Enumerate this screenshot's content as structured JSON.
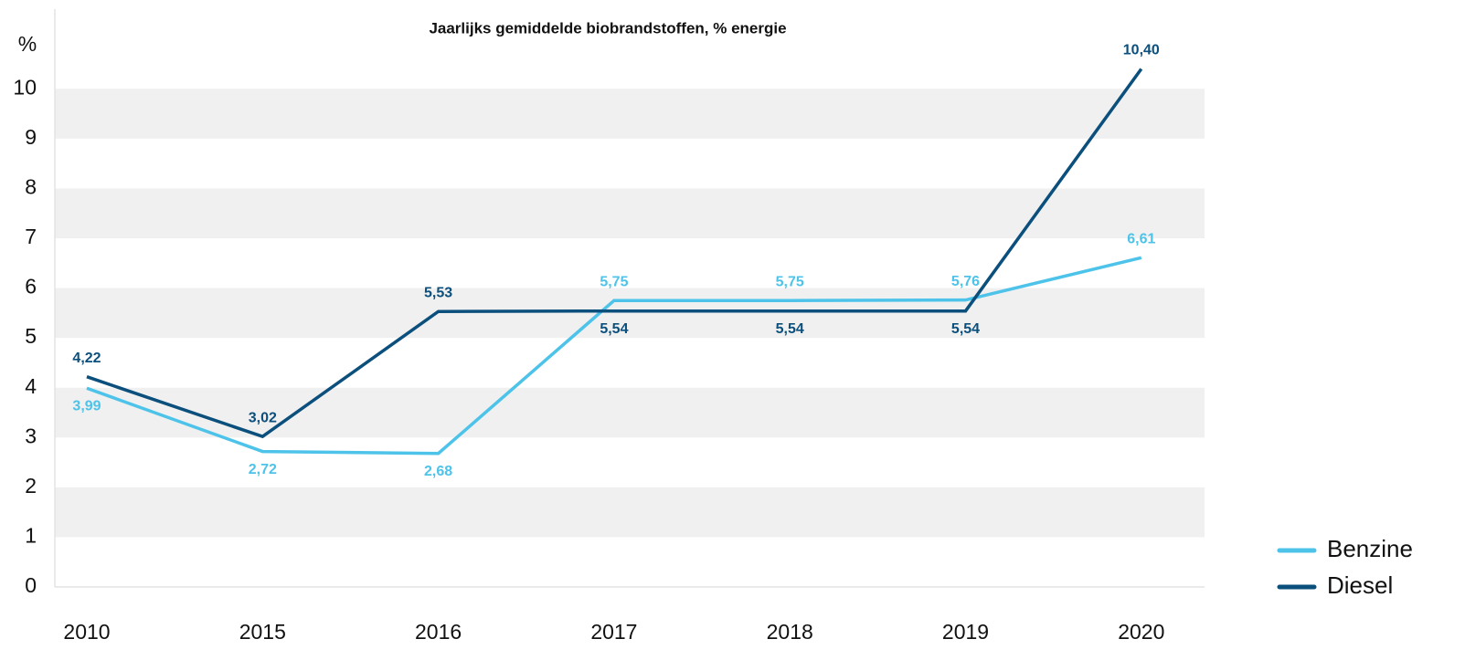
{
  "chart_data": {
    "type": "line",
    "title": "Jaarlijks gemiddelde biobrandstoffen, % energie",
    "y_label": "%",
    "categories": [
      "2010",
      "2015",
      "2016",
      "2017",
      "2018",
      "2019",
      "2020"
    ],
    "series": [
      {
        "name": "Benzine",
        "color": "#4dc3ea",
        "values": [
          3.99,
          2.72,
          2.68,
          5.75,
          5.75,
          5.76,
          6.61
        ],
        "value_labels": [
          "3,99",
          "2,72",
          "2,68",
          "5,75",
          "5,75",
          "5,76",
          "6,61"
        ]
      },
      {
        "name": "Diesel",
        "color": "#0b4f7c",
        "values": [
          4.22,
          3.02,
          5.53,
          5.54,
          5.54,
          5.54,
          10.4
        ],
        "value_labels": [
          "4,22",
          "3,02",
          "5,53",
          "5,54",
          "5,54",
          "5,54",
          "10,40"
        ]
      }
    ],
    "ylim": [
      0,
      11.6
    ],
    "yticks": [
      0,
      1,
      2,
      3,
      4,
      5,
      6,
      7,
      8,
      9,
      10
    ],
    "legend": "bottom-right"
  }
}
